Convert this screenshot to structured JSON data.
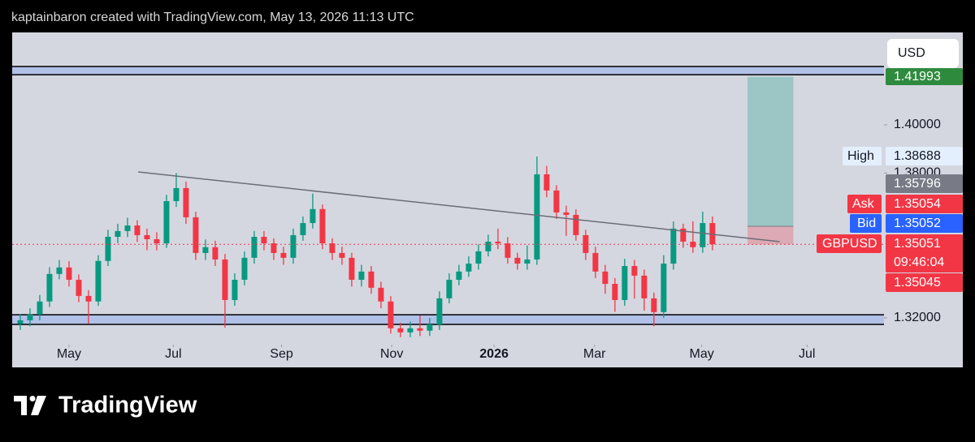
{
  "header": {
    "attribution": "kaptainbaron created with TradingView.com, May 13, 2026 11:13 UTC"
  },
  "footer": {
    "logo": "TradingView"
  },
  "currency_button": "USD",
  "chart_data": {
    "type": "candlestick",
    "series": [
      {
        "name": "GBPUSD",
        "up_color": "#089981",
        "down_color": "#f23645",
        "open": [
          1.3175,
          1.319,
          1.3214,
          1.3268,
          1.3382,
          1.3409,
          1.3358,
          1.3291,
          1.3268,
          1.3436,
          1.3536,
          1.356,
          1.3583,
          1.3543,
          1.3526,
          1.3509,
          1.3684,
          1.3738,
          1.3617,
          1.3469,
          1.3493,
          1.3442,
          1.3274,
          1.3358,
          1.3449,
          1.3536,
          1.3509,
          1.3469,
          1.3449,
          1.3543,
          1.3593,
          1.3651,
          1.3509,
          1.3469,
          1.3449,
          1.3358,
          1.3392,
          1.3325,
          1.3268,
          1.3157,
          1.314,
          1.3157,
          1.3147,
          1.3173,
          1.3281,
          1.3358,
          1.3392,
          1.3425,
          1.3476,
          1.3516,
          1.3509,
          1.3449,
          1.3425,
          1.3442,
          1.3795,
          1.3728,
          1.3637,
          1.3627,
          1.3543,
          1.3469,
          1.3392,
          1.3341,
          1.3274,
          1.3415,
          1.3375,
          1.3281,
          1.3224,
          1.3425,
          1.357,
          1.3516,
          1.3493,
          1.3593
        ],
        "high": [
          1.3215,
          1.324,
          1.3295,
          1.341,
          1.344,
          1.3435,
          1.338,
          1.3315,
          1.346,
          1.3565,
          1.359,
          1.3615,
          1.3605,
          1.357,
          1.3555,
          1.371,
          1.38,
          1.3765,
          1.364,
          1.3525,
          1.352,
          1.3465,
          1.3385,
          1.3475,
          1.356,
          1.356,
          1.353,
          1.3495,
          1.357,
          1.362,
          1.3715,
          1.367,
          1.353,
          1.3495,
          1.347,
          1.342,
          1.3415,
          1.335,
          1.329,
          1.318,
          1.3185,
          1.321,
          1.32,
          1.331,
          1.3385,
          1.342,
          1.3455,
          1.3505,
          1.3545,
          1.357,
          1.3535,
          1.347,
          1.35,
          1.38688,
          1.383,
          1.375,
          1.3665,
          1.365,
          1.3565,
          1.3495,
          1.342,
          1.3365,
          1.3445,
          1.344,
          1.34,
          1.3305,
          1.346,
          1.36,
          1.359,
          1.36,
          1.364,
          1.362
        ],
        "low": [
          1.315,
          1.3165,
          1.319,
          1.3245,
          1.336,
          1.333,
          1.3265,
          1.3175,
          1.325,
          1.3415,
          1.351,
          1.3535,
          1.3515,
          1.348,
          1.348,
          1.349,
          1.366,
          1.359,
          1.344,
          1.344,
          1.3415,
          1.316,
          1.325,
          1.3335,
          1.3425,
          1.348,
          1.344,
          1.342,
          1.3425,
          1.352,
          1.357,
          1.3485,
          1.344,
          1.342,
          1.333,
          1.333,
          1.33,
          1.324,
          1.3135,
          1.312,
          1.312,
          1.3125,
          1.3125,
          1.315,
          1.326,
          1.3335,
          1.337,
          1.34,
          1.3455,
          1.3485,
          1.3425,
          1.34,
          1.34,
          1.342,
          1.37,
          1.361,
          1.354,
          1.352,
          1.344,
          1.3365,
          1.33,
          1.3225,
          1.325,
          1.328,
          1.323,
          1.3165,
          1.32,
          1.34,
          1.349,
          1.347,
          1.347,
          1.348
        ],
        "close": [
          1.319,
          1.3214,
          1.3268,
          1.3382,
          1.3409,
          1.3358,
          1.3291,
          1.3268,
          1.3436,
          1.3536,
          1.356,
          1.3583,
          1.3543,
          1.3526,
          1.3509,
          1.3684,
          1.3738,
          1.3617,
          1.3469,
          1.3493,
          1.3442,
          1.3274,
          1.3358,
          1.3449,
          1.3536,
          1.3509,
          1.3469,
          1.3449,
          1.3543,
          1.3593,
          1.3651,
          1.3509,
          1.3469,
          1.3449,
          1.3358,
          1.3392,
          1.3325,
          1.3268,
          1.3157,
          1.314,
          1.3157,
          1.3147,
          1.3173,
          1.3281,
          1.3358,
          1.3392,
          1.3425,
          1.3476,
          1.3516,
          1.3509,
          1.3449,
          1.3425,
          1.3442,
          1.3795,
          1.3728,
          1.3637,
          1.3627,
          1.3543,
          1.3469,
          1.3392,
          1.3341,
          1.3274,
          1.3415,
          1.3375,
          1.3281,
          1.3224,
          1.3425,
          1.357,
          1.3516,
          1.3493,
          1.3593,
          1.3505
        ]
      }
    ],
    "xlim": [
      -0.83,
      88.6
    ],
    "xticks": [
      {
        "value": 5,
        "label": "May"
      },
      {
        "value": 15.7,
        "label": "Jul"
      },
      {
        "value": 26.8,
        "label": "Sep"
      },
      {
        "value": 38.1,
        "label": "Nov"
      },
      {
        "value": 48.6,
        "label": "2026"
      },
      {
        "value": 58.9,
        "label": "Mar"
      },
      {
        "value": 69.9,
        "label": "May"
      },
      {
        "value": 80.7,
        "label": "Jul"
      }
    ],
    "ylim": [
      1.3089,
      1.4383
    ],
    "yticks": [
      {
        "value": 1.32,
        "label": "1.32000"
      },
      {
        "value": 1.38,
        "label": "1.38000"
      },
      {
        "value": 1.4,
        "label": "1.40000"
      }
    ],
    "zones": [
      {
        "bottom": 1.4208,
        "top": 1.4242,
        "color": "#b2c1e8"
      },
      {
        "bottom": 1.3173,
        "top": 1.3213,
        "color": "#b2c1e8"
      }
    ],
    "trendline": {
      "x": [
        12.1,
        77.9
      ],
      "y": [
        1.3805,
        1.3516
      ]
    },
    "position": {
      "x": [
        74.6,
        79.3
      ],
      "entry": 1.35796,
      "target": 1.41993,
      "stop": 1.3505
    },
    "price_labels": [
      {
        "name": "High",
        "value": 1.38688
      },
      {
        "name": "Ask",
        "value": 1.35054
      },
      {
        "name": "Bid",
        "value": 1.35052
      },
      {
        "name": "GBPUSD",
        "value": 1.35051,
        "countdown": "09:46:04"
      },
      {
        "value": 1.35045
      }
    ]
  }
}
